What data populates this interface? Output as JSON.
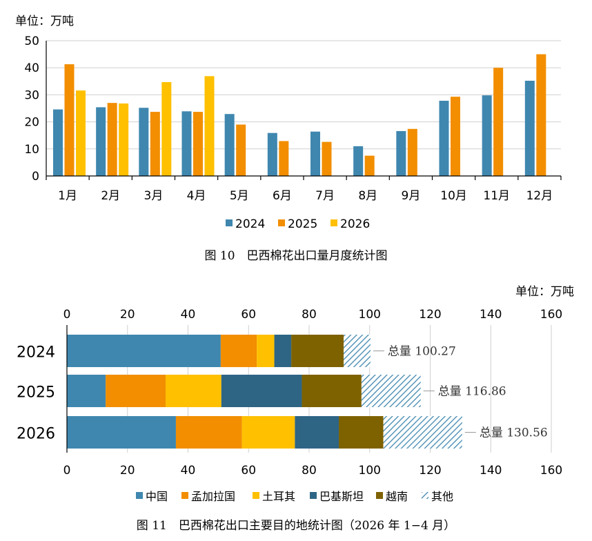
{
  "chart_data": [
    {
      "type": "bar",
      "unit_label": "单位：万吨",
      "categories": [
        "1月",
        "2月",
        "3月",
        "4月",
        "5月",
        "6月",
        "7月",
        "8月",
        "9月",
        "10月",
        "11月",
        "12月"
      ],
      "ylim": [
        0,
        50
      ],
      "yticks": [
        0,
        10,
        20,
        30,
        40,
        50
      ],
      "grid": true,
      "legend_position": "bottom",
      "series": [
        {
          "name": "2024",
          "color": "#3F87AF",
          "values": [
            24.6,
            25.4,
            25.2,
            23.9,
            22.9,
            15.9,
            16.4,
            11.0,
            16.6,
            27.8,
            29.8,
            35.2
          ]
        },
        {
          "name": "2025",
          "color": "#F28E00",
          "values": [
            41.3,
            27.0,
            23.7,
            23.7,
            19.0,
            12.9,
            12.6,
            7.5,
            17.4,
            29.3,
            40.0,
            45.0
          ]
        },
        {
          "name": "2026",
          "color": "#FFC000",
          "values": [
            31.6,
            26.8,
            34.7,
            36.9,
            null,
            null,
            null,
            null,
            null,
            null,
            null,
            null
          ]
        }
      ],
      "caption": "图 10　巴西棉花出口量月度统计图"
    },
    {
      "type": "bar",
      "orientation": "horizontal",
      "stacked": true,
      "unit_label": "单位：万吨",
      "categories": [
        "2024",
        "2025",
        "2026"
      ],
      "xlim": [
        0,
        160
      ],
      "xticks": [
        0,
        20,
        40,
        60,
        80,
        100,
        120,
        140,
        160
      ],
      "grid": true,
      "legend_position": "bottom",
      "series": [
        {
          "name": "中国",
          "color": "#3F87AF",
          "values": [
            50.8,
            12.8,
            36.0
          ]
        },
        {
          "name": "孟加拉国",
          "color": "#F28E00",
          "values": [
            11.9,
            19.8,
            21.8
          ]
        },
        {
          "name": "土耳其",
          "color": "#FFC000",
          "values": [
            5.8,
            18.4,
            17.5
          ]
        },
        {
          "name": "巴基斯坦",
          "color": "#2E6585",
          "values": [
            5.6,
            26.6,
            14.5
          ]
        },
        {
          "name": "越南",
          "color": "#7E6200",
          "values": [
            17.3,
            19.7,
            14.7
          ]
        },
        {
          "name": "其他",
          "color": "#3F87AF",
          "pattern": "hatch",
          "values": [
            8.87,
            19.56,
            26.06
          ]
        }
      ],
      "totals": [
        {
          "label": "总量 100.27",
          "value": 100.27
        },
        {
          "label": "总量 116.86",
          "value": 116.86
        },
        {
          "label": "总量 130.56",
          "value": 130.56
        }
      ],
      "caption": "图 11　巴西棉花出口主要目的地统计图（2026 年 1−4 月）"
    }
  ]
}
